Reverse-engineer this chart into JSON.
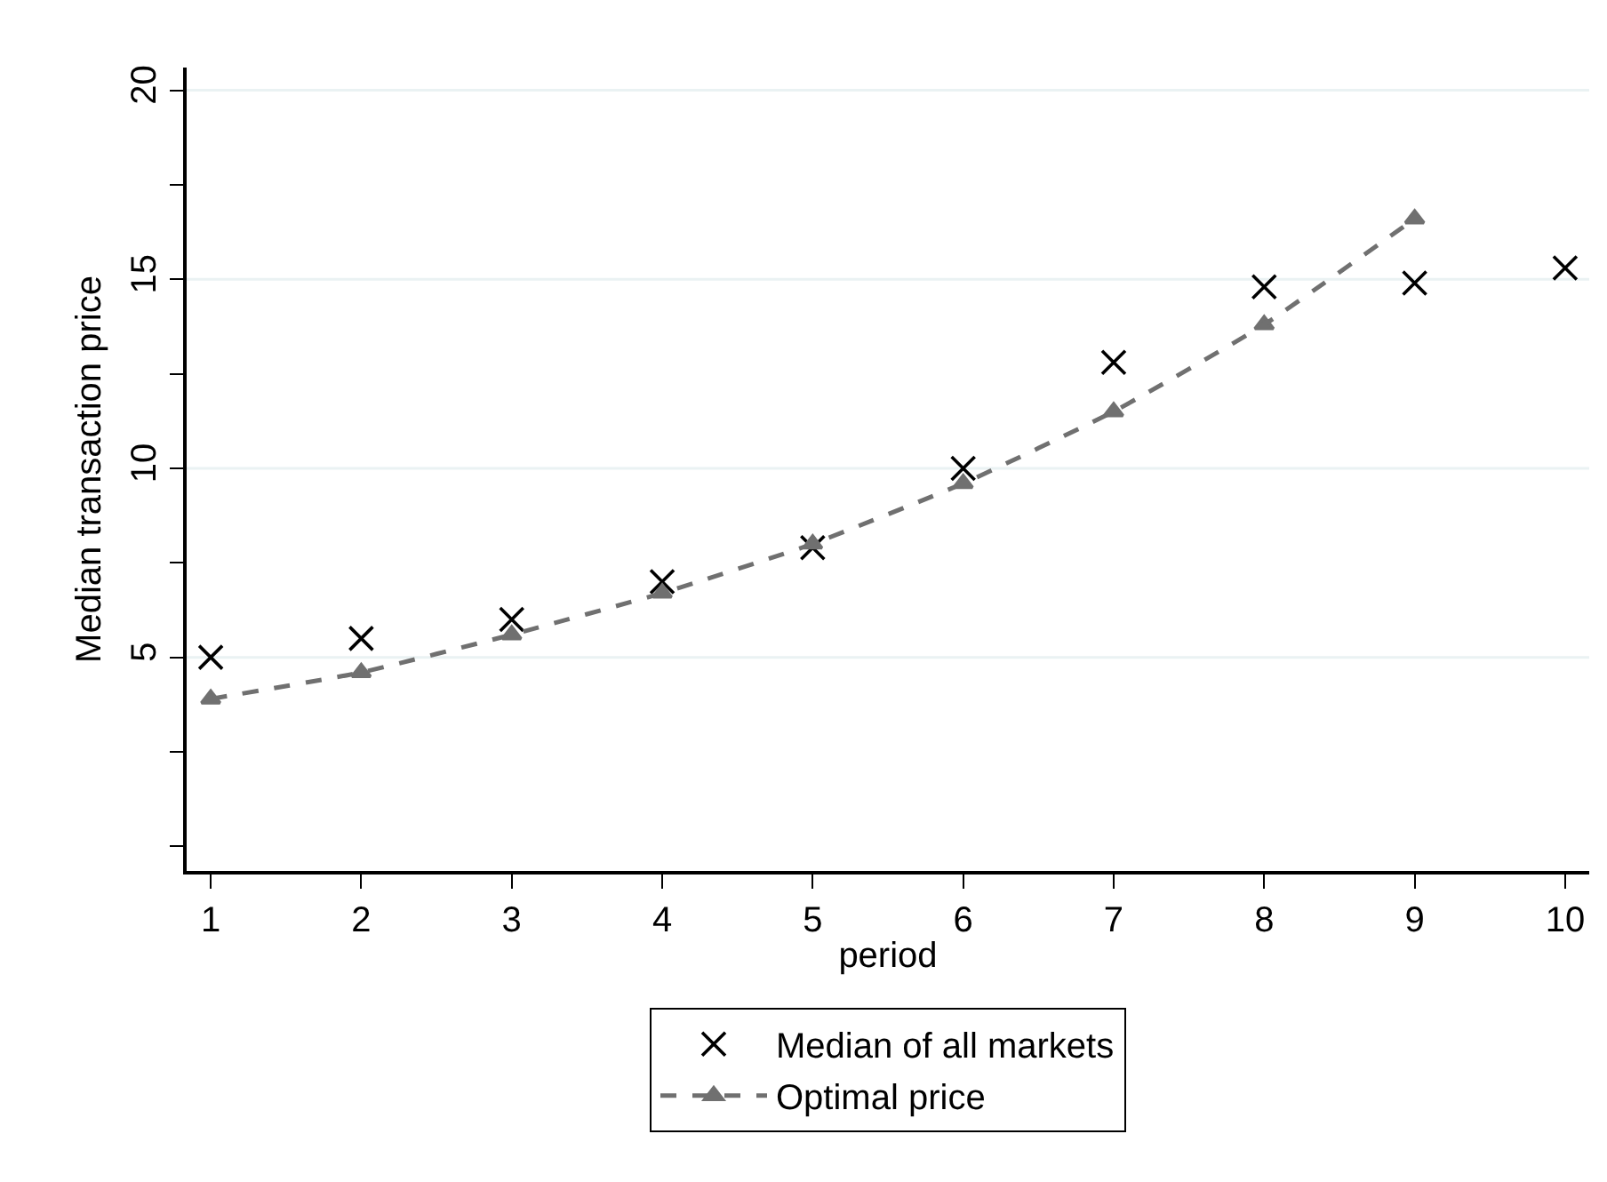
{
  "chart_data": {
    "type": "line",
    "xlabel": "period",
    "ylabel": "Median transaction price",
    "xlim": [
      0.84,
      10.16
    ],
    "xticks": [
      1,
      2,
      3,
      4,
      5,
      6,
      7,
      8,
      9,
      10
    ],
    "ylim": [
      -0.65,
      20.6
    ],
    "yticks": [
      {
        "value": 0,
        "label": null
      },
      {
        "value": 2.5,
        "label": null
      },
      5,
      {
        "value": 7.5,
        "label": null
      },
      10,
      {
        "value": 12.5,
        "label": null
      },
      15,
      {
        "value": 17.5,
        "label": null
      },
      20
    ],
    "grid": "y",
    "legend": "bottom",
    "series": [
      {
        "name": "Median of all markets",
        "type": "scatter",
        "marker": "cross",
        "color": "#000000",
        "x": [
          1,
          2,
          3,
          4,
          5,
          6,
          7,
          8,
          9,
          10
        ],
        "values": [
          5.0,
          5.5,
          6.0,
          7.0,
          7.9,
          10.0,
          12.8,
          14.8,
          14.9,
          15.3
        ]
      },
      {
        "name": "Optimal price",
        "marker": "triangle",
        "line_style": "dashed",
        "color": "#707070",
        "x": [
          1,
          2,
          3,
          4,
          5,
          6,
          7,
          8,
          9
        ],
        "values": [
          3.9,
          4.6,
          5.6,
          6.7,
          8.0,
          9.6,
          11.5,
          13.8,
          16.6
        ]
      }
    ]
  }
}
